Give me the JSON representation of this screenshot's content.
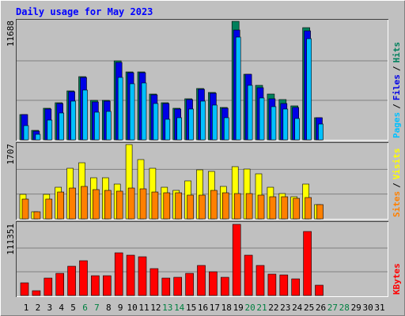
{
  "chart_data": {
    "type": "bar",
    "title": "Daily usage for May 2023",
    "categories": [
      "1",
      "2",
      "3",
      "4",
      "5",
      "6",
      "7",
      "8",
      "9",
      "10",
      "11",
      "12",
      "13",
      "14",
      "15",
      "16",
      "17",
      "18",
      "19",
      "20",
      "21",
      "22",
      "23",
      "24",
      "25",
      "26",
      "27",
      "28",
      "29",
      "30",
      "31"
    ],
    "weekend_indices": [
      5,
      6,
      12,
      13,
      19,
      20,
      26,
      27
    ],
    "weekend_color": "#008040",
    "separator": "/",
    "panels": [
      {
        "ylim": [
          0,
          11688
        ],
        "yticks": [
          11688
        ],
        "series": [
          {
            "name": "Hits",
            "color": "#00805c",
            "values": [
              2493,
              935,
              3117,
              3662,
              4830,
              6234,
              3896,
              3896,
              7792,
              6701,
              6701,
              4519,
              3662,
              3117,
              4052,
              5065,
              4675,
              3195,
              11688,
              6468,
              5376,
              4519,
              3974,
              3351,
              11065,
              2182,
              null,
              null,
              null,
              null,
              null
            ]
          },
          {
            "name": "Files",
            "color": "#0000e6",
            "values": [
              2493,
              857,
              3039,
              3584,
              4753,
              6156,
              3740,
              3818,
              7636,
              6623,
              6623,
              4441,
              3584,
              3039,
              3974,
              4987,
              4597,
              3117,
              10831,
              6468,
              5143,
              4052,
              3584,
              3195,
              10753,
              2182,
              null,
              null,
              null,
              null,
              null
            ]
          },
          {
            "name": "Pages",
            "color": "#00c0ff",
            "values": [
              1403,
              545,
              1948,
              2649,
              3818,
              4909,
              2727,
              2805,
              6156,
              5532,
              5610,
              3584,
              2026,
              2182,
              3039,
              3818,
              3428,
              2182,
              10130,
              5376,
              4130,
              3273,
              3039,
              2104,
              9974,
              1558,
              null,
              null,
              null,
              null,
              null
            ]
          }
        ]
      },
      {
        "ylim": [
          0,
          1707
        ],
        "yticks": [
          1707
        ],
        "series": [
          {
            "name": "Visits",
            "color": "#ffff00",
            "values": [
              563,
              163,
              563,
              726,
              1162,
              1289,
              944,
              944,
              799,
              1707,
              1362,
              1162,
              726,
              654,
              872,
              1126,
              1090,
              745,
              1199,
              1144,
              1035,
              726,
              581,
              508,
              799,
              327,
              null,
              null,
              null,
              null,
              null
            ]
          },
          {
            "name": "Sites",
            "color": "#ff8000",
            "values": [
              454,
              163,
              454,
              617,
              708,
              745,
              672,
              654,
              636,
              708,
              690,
              617,
              599,
              599,
              545,
              545,
              654,
              599,
              581,
              581,
              545,
              508,
              508,
              472,
              490,
              327,
              null,
              null,
              null,
              null,
              null
            ]
          }
        ]
      },
      {
        "ylim": [
          0,
          111351
        ],
        "yticks": [
          111351
        ],
        "series": [
          {
            "name": "KBytes",
            "color": "#ff0000",
            "values": [
              19792,
              7422,
              27214,
              34636,
              45769,
              54428,
              30925,
              30925,
              66798,
              63087,
              60613,
              42058,
              27214,
              28451,
              34636,
              47006,
              37110,
              28451,
              111351,
              63087,
              47006,
              33399,
              32162,
              25977,
              100197,
              16081,
              null,
              null,
              null,
              null,
              null
            ]
          }
        ]
      }
    ]
  }
}
